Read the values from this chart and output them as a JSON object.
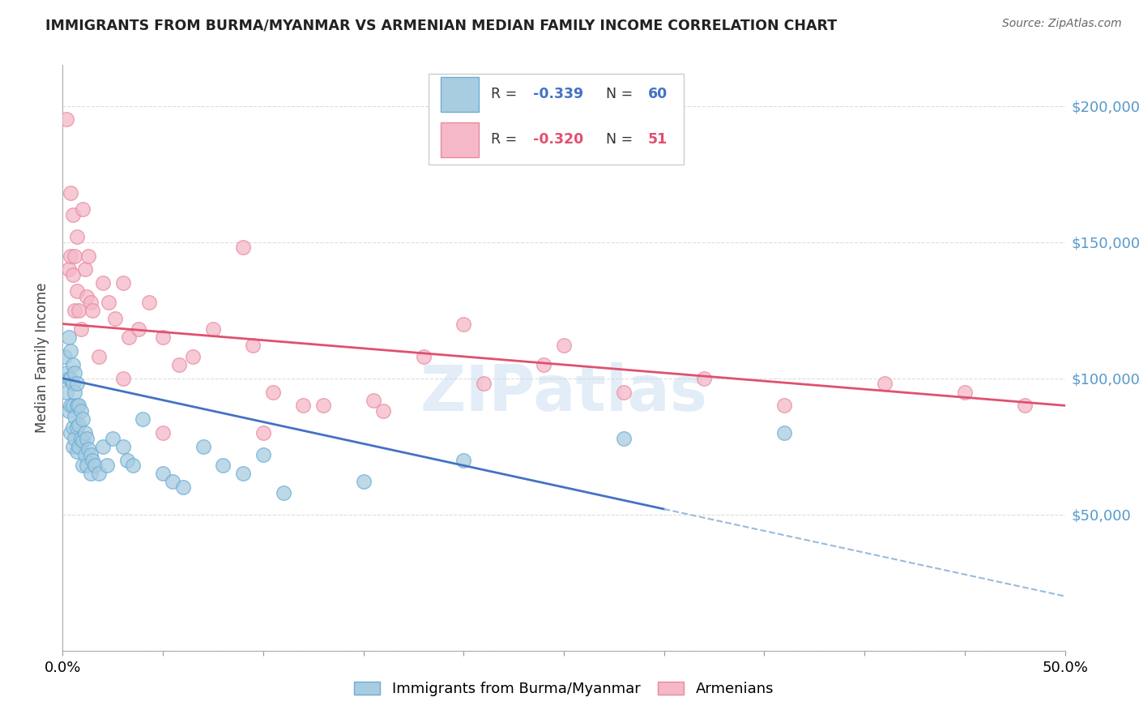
{
  "title": "IMMIGRANTS FROM BURMA/MYANMAR VS ARMENIAN MEDIAN FAMILY INCOME CORRELATION CHART",
  "source": "Source: ZipAtlas.com",
  "ylabel": "Median Family Income",
  "y_ticks": [
    0,
    50000,
    100000,
    150000,
    200000
  ],
  "y_tick_labels": [
    "",
    "$50,000",
    "$100,000",
    "$150,000",
    "$200,000"
  ],
  "x_range": [
    0.0,
    0.5
  ],
  "y_range": [
    0,
    215000
  ],
  "legend_r1": "-0.339",
  "legend_n1": "60",
  "legend_r2": "-0.320",
  "legend_n2": "51",
  "legend_label1": "Immigrants from Burma/Myanmar",
  "legend_label2": "Armenians",
  "blue_fill": "#a8cce0",
  "pink_fill": "#f4b8c8",
  "blue_edge": "#6aaed6",
  "pink_edge": "#e88aa0",
  "line_blue": "#4472c4",
  "line_pink": "#e05070",
  "dashed_color": "#99bbdd",
  "right_label_color": "#5599cc",
  "bg_color": "#ffffff",
  "grid_color": "#dddddd",
  "watermark": "ZIPatlas",
  "blue_x": [
    0.001,
    0.002,
    0.002,
    0.003,
    0.003,
    0.003,
    0.004,
    0.004,
    0.004,
    0.004,
    0.005,
    0.005,
    0.005,
    0.005,
    0.005,
    0.006,
    0.006,
    0.006,
    0.006,
    0.007,
    0.007,
    0.007,
    0.007,
    0.008,
    0.008,
    0.008,
    0.009,
    0.009,
    0.01,
    0.01,
    0.01,
    0.011,
    0.011,
    0.012,
    0.012,
    0.013,
    0.014,
    0.014,
    0.015,
    0.016,
    0.018,
    0.02,
    0.022,
    0.025,
    0.03,
    0.032,
    0.035,
    0.04,
    0.05,
    0.055,
    0.06,
    0.07,
    0.08,
    0.09,
    0.1,
    0.11,
    0.15,
    0.2,
    0.28,
    0.36
  ],
  "blue_y": [
    108000,
    102000,
    95000,
    115000,
    100000,
    88000,
    110000,
    100000,
    90000,
    80000,
    105000,
    98000,
    90000,
    82000,
    75000,
    102000,
    95000,
    86000,
    78000,
    98000,
    90000,
    82000,
    73000,
    90000,
    83000,
    75000,
    88000,
    78000,
    85000,
    77000,
    68000,
    80000,
    72000,
    78000,
    68000,
    74000,
    72000,
    65000,
    70000,
    68000,
    65000,
    75000,
    68000,
    78000,
    75000,
    70000,
    68000,
    85000,
    65000,
    62000,
    60000,
    75000,
    68000,
    65000,
    72000,
    58000,
    62000,
    70000,
    78000,
    80000
  ],
  "pink_x": [
    0.002,
    0.003,
    0.004,
    0.004,
    0.005,
    0.005,
    0.006,
    0.006,
    0.007,
    0.007,
    0.008,
    0.009,
    0.01,
    0.011,
    0.012,
    0.013,
    0.014,
    0.015,
    0.018,
    0.02,
    0.023,
    0.026,
    0.03,
    0.033,
    0.038,
    0.043,
    0.05,
    0.058,
    0.065,
    0.075,
    0.09,
    0.105,
    0.13,
    0.155,
    0.18,
    0.21,
    0.24,
    0.28,
    0.32,
    0.36,
    0.41,
    0.45,
    0.48,
    0.095,
    0.12,
    0.16,
    0.2,
    0.03,
    0.05,
    0.1,
    0.25
  ],
  "pink_y": [
    195000,
    140000,
    168000,
    145000,
    160000,
    138000,
    145000,
    125000,
    152000,
    132000,
    125000,
    118000,
    162000,
    140000,
    130000,
    145000,
    128000,
    125000,
    108000,
    135000,
    128000,
    122000,
    135000,
    115000,
    118000,
    128000,
    115000,
    105000,
    108000,
    118000,
    148000,
    95000,
    90000,
    92000,
    108000,
    98000,
    105000,
    95000,
    100000,
    90000,
    98000,
    95000,
    90000,
    112000,
    90000,
    88000,
    120000,
    100000,
    80000,
    80000,
    112000
  ]
}
